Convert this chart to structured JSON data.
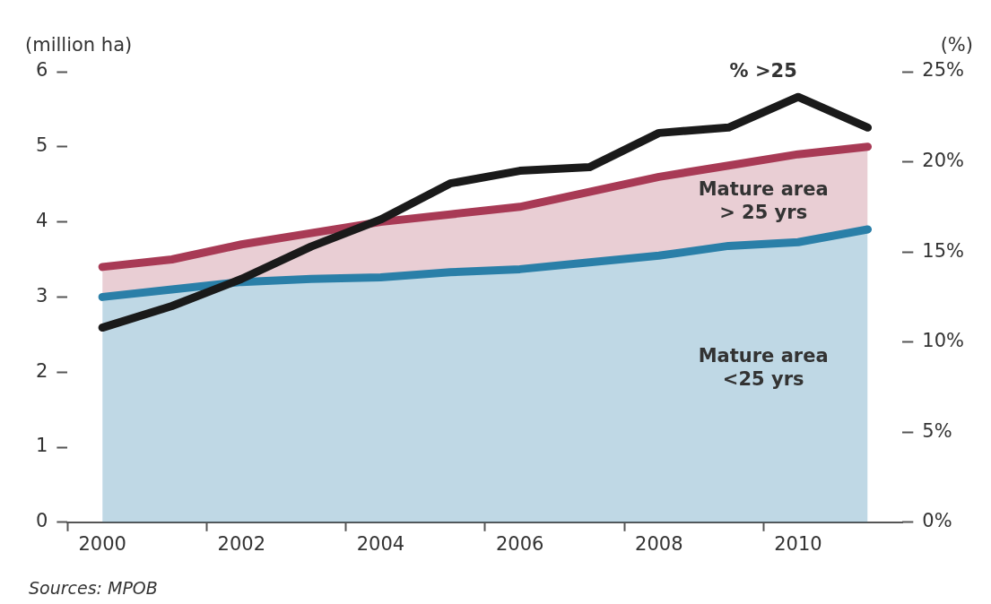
{
  "chart_data": {
    "type": "line",
    "ylabel": "(million ha)",
    "y2label": "(%)",
    "categories": [
      "2000",
      null,
      "2002",
      null,
      "2004",
      null,
      "2006",
      null,
      "2008",
      null,
      "2010",
      null
    ],
    "series": [
      {
        "name": "Mature area <25 yrs",
        "type": "area",
        "color": "#2a7fa8",
        "values": [
          3.0,
          3.1,
          3.2,
          3.24,
          3.26,
          3.33,
          3.37,
          3.46,
          3.55,
          3.68,
          3.73,
          3.9
        ]
      },
      {
        "name": "Mature area > 25 yrs",
        "type": "area",
        "color": "#a83a55",
        "values": [
          3.4,
          3.5,
          3.7,
          3.85,
          4.0,
          4.1,
          4.2,
          4.4,
          4.6,
          4.75,
          4.9,
          5.0
        ]
      },
      {
        "name": "% >25",
        "type": "line",
        "axis": "y2",
        "color": "#1a1a1a",
        "values": [
          10.8,
          12.0,
          13.5,
          15.3,
          16.8,
          18.8,
          19.5,
          19.7,
          21.6,
          21.9,
          23.6,
          21.9
        ]
      }
    ],
    "ylim": [
      0,
      6
    ],
    "yticks": [
      0,
      1,
      2,
      3,
      4,
      5,
      6
    ],
    "y2lim": [
      0,
      25
    ],
    "y2ticks": [
      {
        "value": 0,
        "label": "0%"
      },
      {
        "value": 5,
        "label": "5%"
      },
      {
        "value": 10,
        "label": "10%"
      },
      {
        "value": 15,
        "label": "15%"
      },
      {
        "value": 20,
        "label": "20%"
      },
      {
        "value": 25,
        "label": "25%"
      }
    ],
    "grid": false,
    "legend": false,
    "marker": "none",
    "line_style": "solid",
    "annotations": [
      "Sources: MPOB"
    ]
  }
}
